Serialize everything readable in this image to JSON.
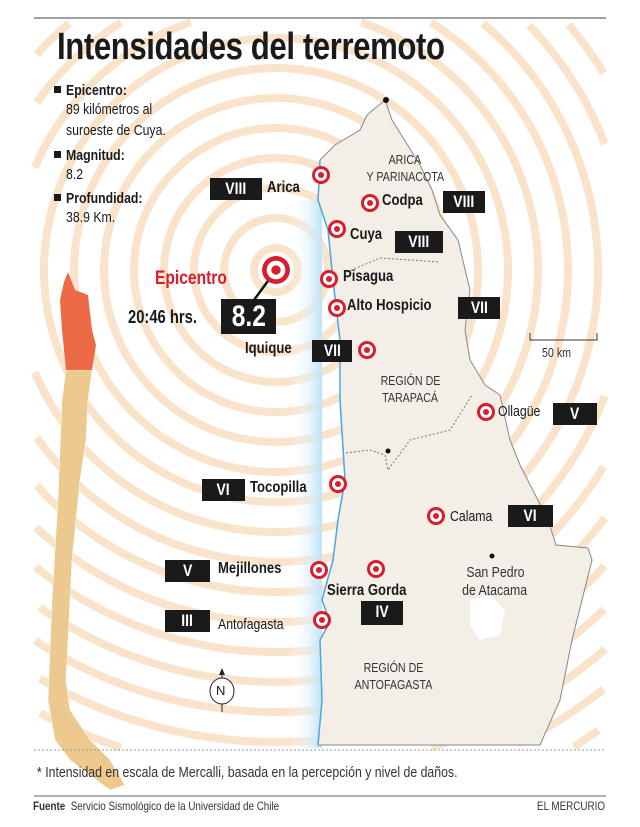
{
  "title": "Intensidades del terremoto",
  "info": [
    {
      "label": "Epicentro:",
      "value_lines": [
        "89 kilómetros al",
        "suroeste de Cuya."
      ]
    },
    {
      "label": "Magnitud:",
      "value_lines": [
        "8.2"
      ]
    },
    {
      "label": "Profundidad:",
      "value_lines": [
        "38.9 Km."
      ]
    }
  ],
  "epicenter": {
    "label": "Epicentro",
    "time": "20:46 hrs.",
    "magnitude": "8.2"
  },
  "places": [
    {
      "name": "Arica",
      "intensity": "VIII"
    },
    {
      "name": "Codpa",
      "intensity": "VIII"
    },
    {
      "name": "Cuya",
      "intensity": "VIII"
    },
    {
      "name": "Pisagua",
      "intensity": ""
    },
    {
      "name": "Alto Hospicio",
      "intensity": "VII"
    },
    {
      "name": "Iquique",
      "intensity": "VII"
    },
    {
      "name": "Ollagüe",
      "intensity": "V"
    },
    {
      "name": "Tocopilla",
      "intensity": "VI"
    },
    {
      "name": "Calama",
      "intensity": "VI"
    },
    {
      "name": "Mejillones",
      "intensity": "V"
    },
    {
      "name": "Sierra Gorda",
      "intensity": "IV"
    },
    {
      "name": "Antofagasta",
      "intensity": "III"
    }
  ],
  "regions": [
    {
      "lines": [
        "ARICA",
        "Y PARINACOTA"
      ]
    },
    {
      "lines": [
        "REGIÓN DE",
        "TARAPACÁ"
      ]
    },
    {
      "lines": [
        "REGIÓN DE",
        "ANTOFAGASTA"
      ]
    }
  ],
  "towns": [
    {
      "lines": [
        "San Pedro",
        "de Atacama"
      ]
    }
  ],
  "scale_label": "50 km",
  "compass_label": "N",
  "footnote": "* Intensidad en escala de Mercalli, basada en la percepción y nivel de daños.",
  "source_label": "Fuente",
  "source": "Servicio Sismológico de la Universidad de Chile",
  "publisher": "EL MERCURIO",
  "colors": {
    "marker": "#d81e2c",
    "rings": "#f9e4cb",
    "land": "#f3efe7",
    "highlight_region": "#ec6a45",
    "chile": "#ebc98f",
    "sea": "#bfe3f7"
  }
}
